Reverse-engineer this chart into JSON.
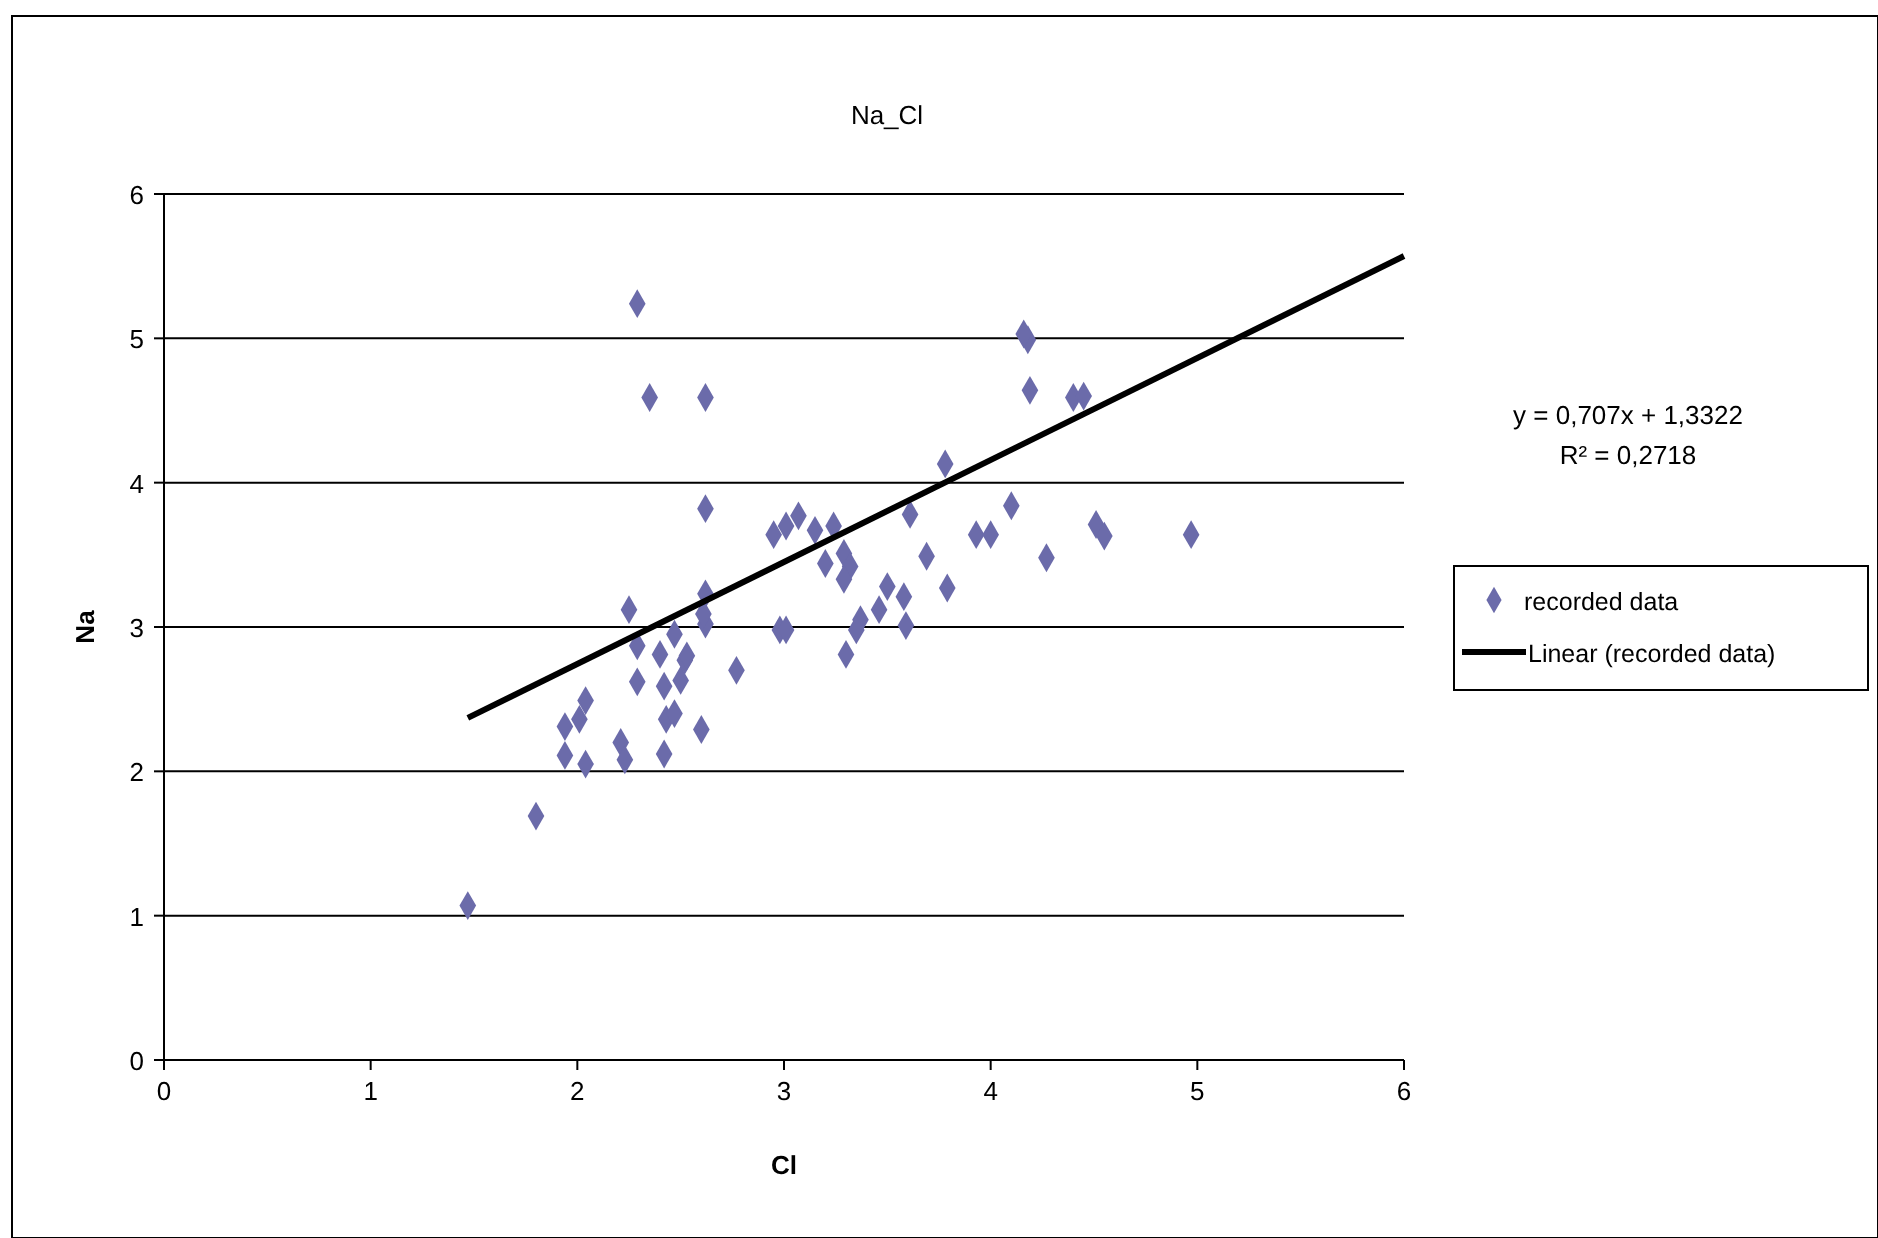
{
  "chart_data": {
    "type": "scatter",
    "title": "Na_Cl",
    "xlabel": "Cl",
    "ylabel": "Na",
    "xlim": [
      0,
      6
    ],
    "ylim": [
      0,
      6
    ],
    "xticks": [
      0,
      1,
      2,
      3,
      4,
      5,
      6
    ],
    "yticks": [
      0,
      1,
      2,
      3,
      4,
      5,
      6
    ],
    "grid": "y",
    "legend": "right",
    "annotations": [
      "y = 0,707x + 1,3322",
      "R² = 0,2718"
    ],
    "series": [
      {
        "name": "recorded data",
        "marker": "diamond",
        "color": "#6b6baa",
        "x": [
          1.47,
          1.8,
          1.94,
          2.01,
          2.04,
          1.94,
          2.04,
          2.21,
          2.23,
          2.29,
          2.35,
          2.62,
          2.62,
          2.25,
          2.29,
          2.29,
          2.42,
          2.6,
          2.43,
          2.47,
          2.42,
          2.5,
          2.52,
          2.4,
          2.47,
          2.53,
          2.62,
          2.62,
          2.61,
          2.77,
          2.98,
          3.01,
          2.95,
          3.01,
          3.07,
          3.15,
          3.24,
          3.2,
          3.29,
          3.32,
          3.29,
          3.37,
          3.35,
          3.3,
          3.46,
          3.5,
          3.58,
          3.59,
          3.61,
          4.18,
          4.16,
          4.19,
          4.4,
          4.45,
          3.78,
          4.1,
          3.93,
          4.0,
          4.51,
          4.55,
          4.97,
          3.69,
          4.27,
          3.79
        ],
        "values": [
          1.07,
          1.69,
          2.31,
          2.36,
          2.49,
          2.11,
          2.05,
          2.2,
          2.08,
          5.24,
          4.59,
          4.59,
          3.82,
          3.12,
          2.87,
          2.62,
          2.12,
          2.29,
          2.36,
          2.4,
          2.59,
          2.63,
          2.77,
          2.81,
          2.95,
          2.8,
          3.23,
          3.02,
          3.09,
          2.7,
          2.98,
          2.98,
          3.64,
          3.7,
          3.77,
          3.67,
          3.7,
          3.44,
          3.51,
          3.42,
          3.33,
          3.05,
          2.98,
          2.81,
          3.12,
          3.28,
          3.21,
          3.01,
          3.78,
          4.99,
          5.03,
          4.64,
          4.59,
          4.6,
          4.13,
          3.84,
          3.64,
          3.64,
          3.71,
          3.63,
          3.64,
          3.49,
          3.48,
          3.27
        ]
      },
      {
        "name": "Linear (recorded data)",
        "type": "line",
        "color": "#000000",
        "x": [
          1.47,
          6
        ],
        "values": [
          2.37,
          5.57
        ]
      }
    ]
  }
}
